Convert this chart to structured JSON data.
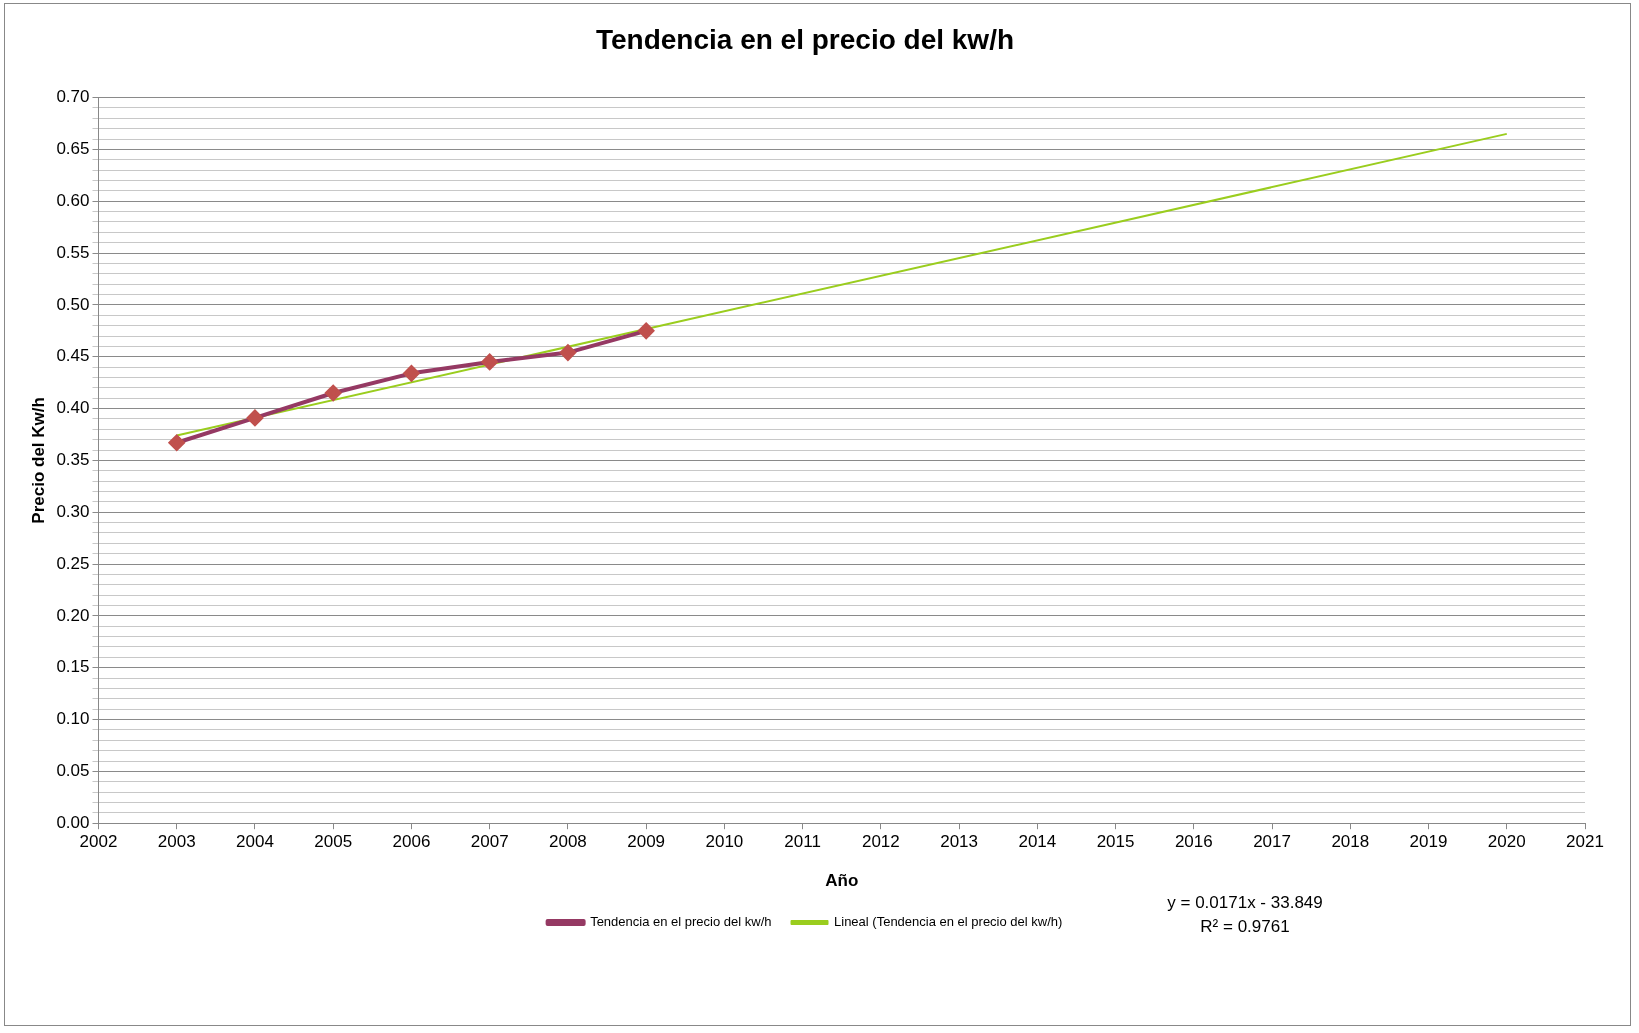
{
  "chart_data": {
    "type": "line",
    "title": "Tendencia en el precio del kw/h",
    "xlabel": "Año",
    "ylabel": "Precio del Kw/h",
    "x": [
      2003,
      2004,
      2005,
      2006,
      2007,
      2008,
      2009
    ],
    "series": [
      {
        "name": "Tendencia en el precio del kw/h",
        "color": "#953963",
        "marker": "diamond",
        "values": [
          0.367,
          0.391,
          0.415,
          0.434,
          0.445,
          0.454,
          0.475
        ]
      },
      {
        "name": "Lineal (Tendencia en el precio del kw/h)",
        "color": "#9acd1e",
        "marker": "none",
        "x": [
          2003,
          2020
        ],
        "values": [
          0.374,
          0.665
        ]
      }
    ],
    "xlim": [
      2002,
      2021
    ],
    "xticks": [
      2002,
      2003,
      2004,
      2005,
      2006,
      2007,
      2008,
      2009,
      2010,
      2011,
      2012,
      2013,
      2014,
      2015,
      2016,
      2017,
      2018,
      2019,
      2020,
      2021
    ],
    "ylim": [
      0,
      0.7
    ],
    "yticks": [
      {
        "value": 0,
        "label": "0.00"
      },
      {
        "value": 0.01,
        "label": null
      },
      {
        "value": 0.02,
        "label": null
      },
      {
        "value": 0.03,
        "label": null
      },
      {
        "value": 0.04,
        "label": null
      },
      {
        "value": 0.05,
        "label": "0.05"
      },
      {
        "value": 0.06,
        "label": null
      },
      {
        "value": 0.07,
        "label": null
      },
      {
        "value": 0.08,
        "label": null
      },
      {
        "value": 0.09,
        "label": null
      },
      {
        "value": 0.1,
        "label": "0.10"
      },
      {
        "value": 0.11,
        "label": null
      },
      {
        "value": 0.12,
        "label": null
      },
      {
        "value": 0.13,
        "label": null
      },
      {
        "value": 0.14,
        "label": null
      },
      {
        "value": 0.15,
        "label": "0.15"
      },
      {
        "value": 0.16,
        "label": null
      },
      {
        "value": 0.17,
        "label": null
      },
      {
        "value": 0.18,
        "label": null
      },
      {
        "value": 0.19,
        "label": null
      },
      {
        "value": 0.2,
        "label": "0.20"
      },
      {
        "value": 0.21,
        "label": null
      },
      {
        "value": 0.22,
        "label": null
      },
      {
        "value": 0.23,
        "label": null
      },
      {
        "value": 0.24,
        "label": null
      },
      {
        "value": 0.25,
        "label": "0.25"
      },
      {
        "value": 0.26,
        "label": null
      },
      {
        "value": 0.27,
        "label": null
      },
      {
        "value": 0.28,
        "label": null
      },
      {
        "value": 0.29,
        "label": null
      },
      {
        "value": 0.3,
        "label": "0.30"
      },
      {
        "value": 0.31,
        "label": null
      },
      {
        "value": 0.32,
        "label": null
      },
      {
        "value": 0.33,
        "label": null
      },
      {
        "value": 0.34,
        "label": null
      },
      {
        "value": 0.35,
        "label": "0.35"
      },
      {
        "value": 0.36,
        "label": null
      },
      {
        "value": 0.37,
        "label": null
      },
      {
        "value": 0.38,
        "label": null
      },
      {
        "value": 0.39,
        "label": null
      },
      {
        "value": 0.4,
        "label": "0.40"
      },
      {
        "value": 0.41,
        "label": null
      },
      {
        "value": 0.42,
        "label": null
      },
      {
        "value": 0.43,
        "label": null
      },
      {
        "value": 0.44,
        "label": null
      },
      {
        "value": 0.45,
        "label": "0.45"
      },
      {
        "value": 0.46,
        "label": null
      },
      {
        "value": 0.47,
        "label": null
      },
      {
        "value": 0.48,
        "label": null
      },
      {
        "value": 0.49,
        "label": null
      },
      {
        "value": 0.5,
        "label": "0.50"
      },
      {
        "value": 0.51,
        "label": null
      },
      {
        "value": 0.52,
        "label": null
      },
      {
        "value": 0.53,
        "label": null
      },
      {
        "value": 0.54,
        "label": null
      },
      {
        "value": 0.55,
        "label": "0.55"
      },
      {
        "value": 0.56,
        "label": null
      },
      {
        "value": 0.57,
        "label": null
      },
      {
        "value": 0.58,
        "label": null
      },
      {
        "value": 0.59,
        "label": null
      },
      {
        "value": 0.6,
        "label": "0.60"
      },
      {
        "value": 0.61,
        "label": null
      },
      {
        "value": 0.62,
        "label": null
      },
      {
        "value": 0.63,
        "label": null
      },
      {
        "value": 0.64,
        "label": null
      },
      {
        "value": 0.65,
        "label": "0.65"
      },
      {
        "value": 0.66,
        "label": null
      },
      {
        "value": 0.67,
        "label": null
      },
      {
        "value": 0.68,
        "label": null
      },
      {
        "value": 0.69,
        "label": null
      },
      {
        "value": 0.7,
        "label": "0.70"
      }
    ],
    "grid": "y",
    "legend": "bottom",
    "line_style": "solid",
    "annotations": [
      "y = 0.0171x - 33.849",
      "R² = 0.9761"
    ]
  }
}
